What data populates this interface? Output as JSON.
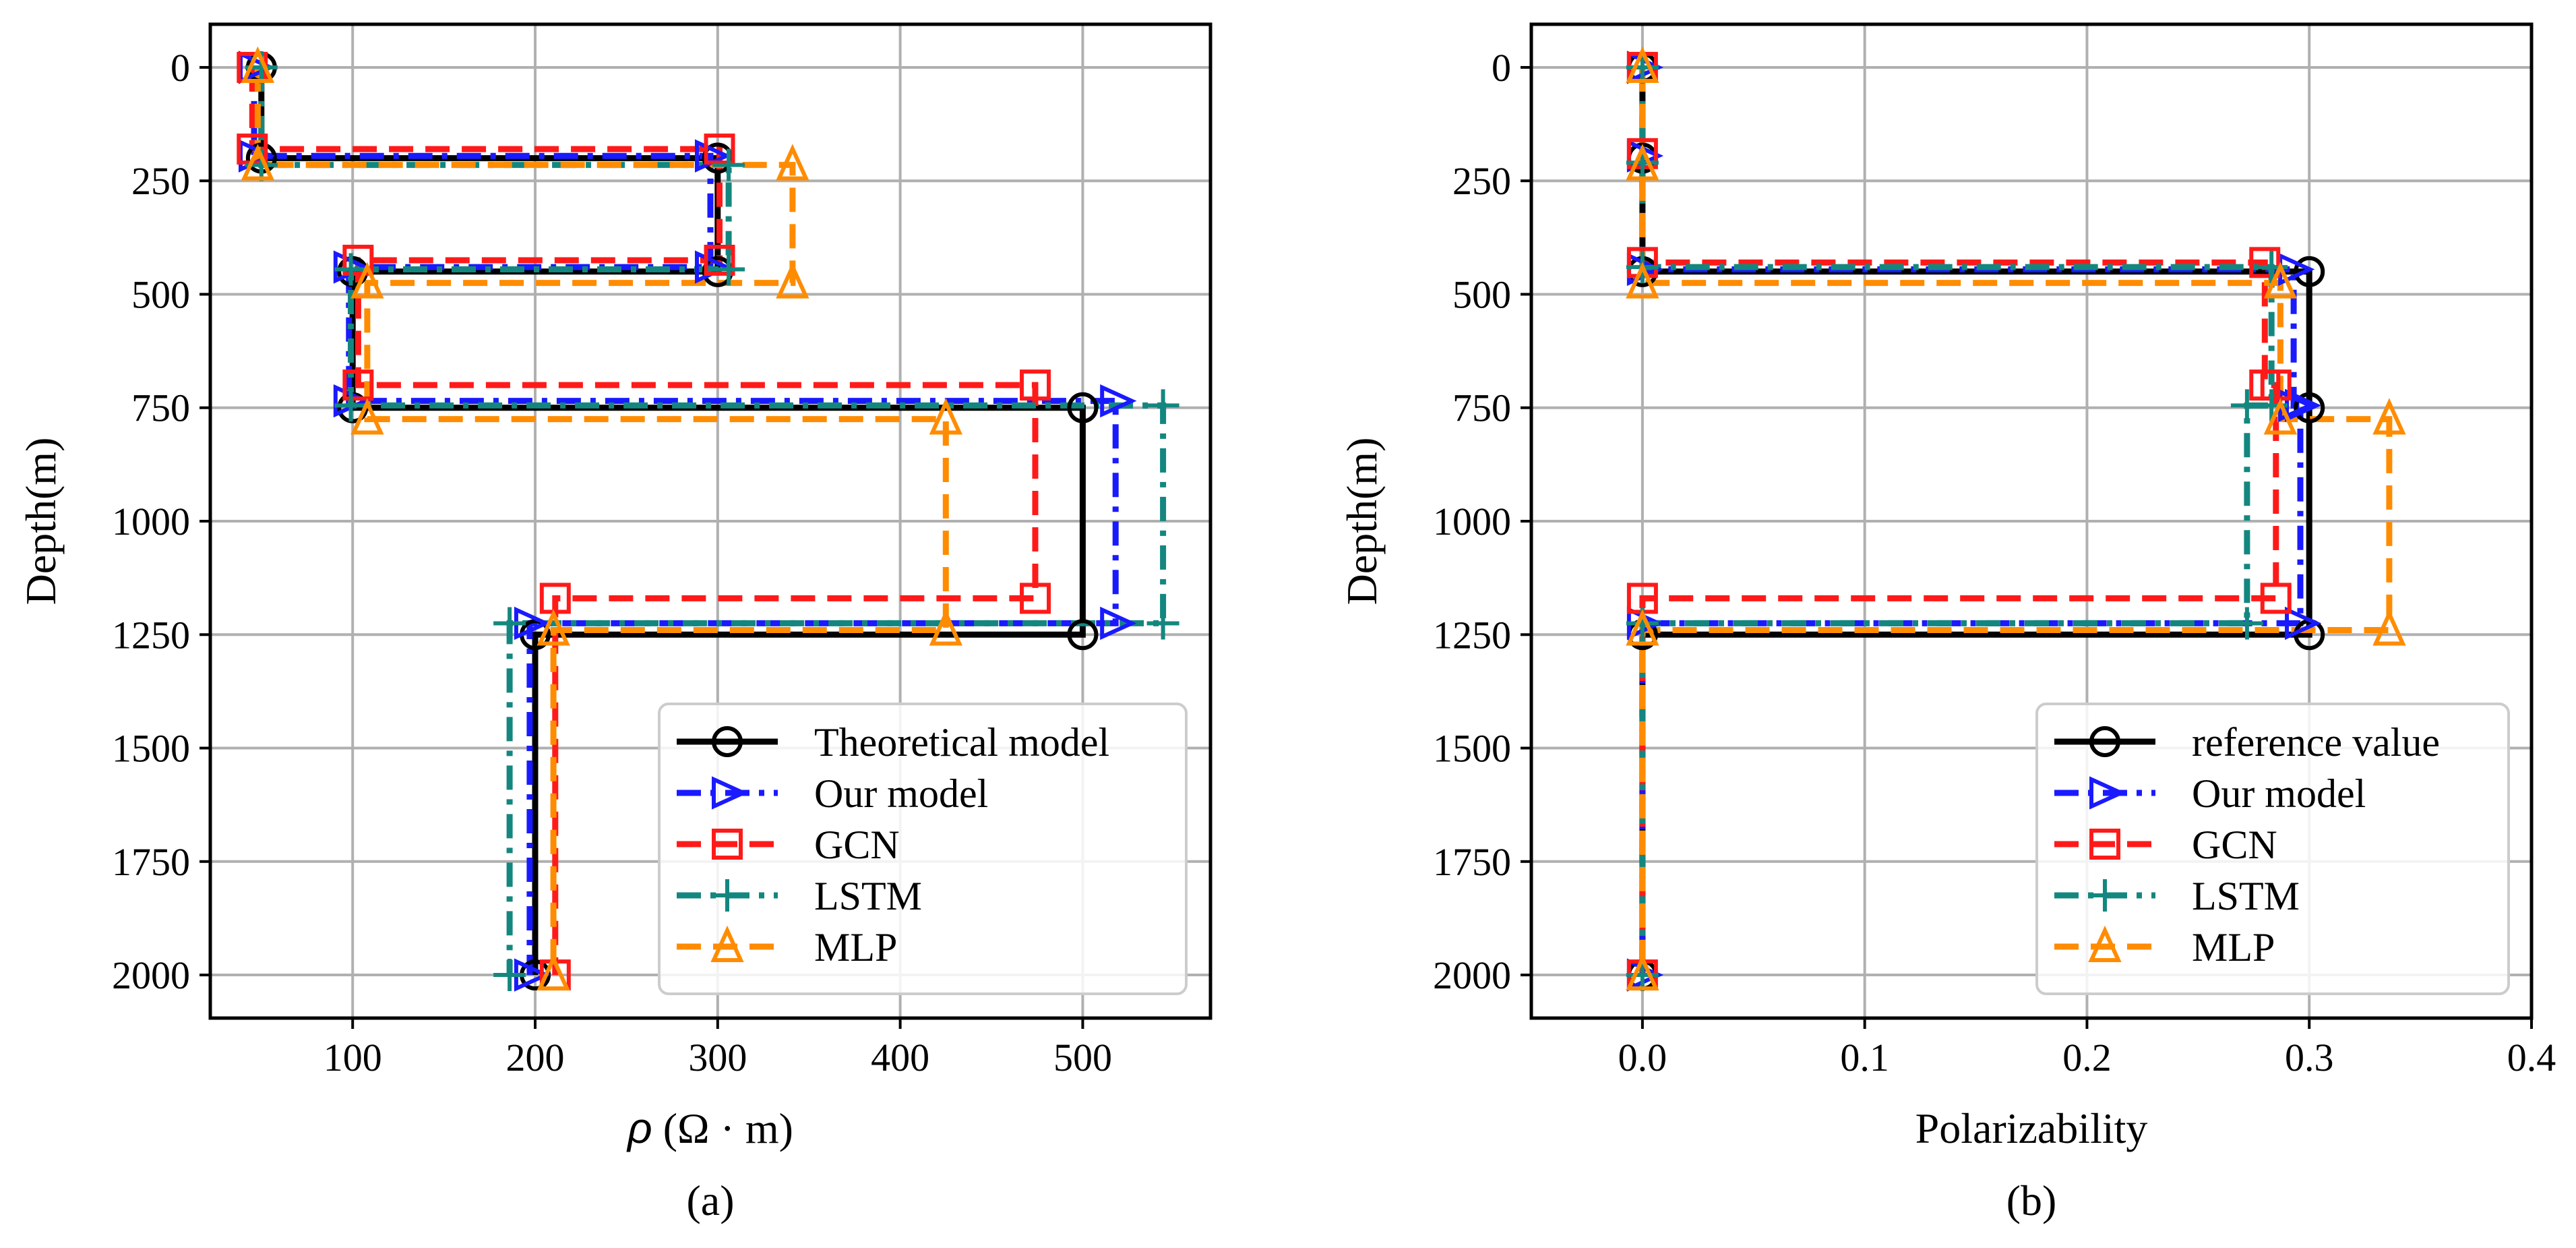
{
  "chart_data": [
    {
      "type": "line",
      "panel": "a",
      "caption": "(a)",
      "xlabel_symbol": "ρ",
      "xlabel_rest": " (Ω · m)",
      "ylabel": "Depth(m)",
      "xlim": [
        22,
        570
      ],
      "ylim": [
        2095,
        -95
      ],
      "y_inverted": true,
      "grid": true,
      "xticks": [
        100,
        200,
        300,
        400,
        500
      ],
      "xtick_labels": [
        "100",
        "200",
        "300",
        "400",
        "500"
      ],
      "yticks": [
        0,
        250,
        500,
        750,
        1000,
        1250,
        1500,
        1750,
        2000
      ],
      "ytick_labels": [
        "0",
        "250",
        "500",
        "750",
        "1000",
        "1250",
        "1500",
        "1750",
        "2000"
      ],
      "legend_position": "lower-right",
      "series": [
        {
          "name": "Theoretical model",
          "color": "#000000",
          "style": "solid",
          "marker": "circle",
          "points": [
            [
              50,
              0
            ],
            [
              50,
              200
            ],
            [
              300,
              200
            ],
            [
              300,
              450
            ],
            [
              100,
              450
            ],
            [
              100,
              750
            ],
            [
              500,
              750
            ],
            [
              500,
              1250
            ],
            [
              200,
              1250
            ],
            [
              200,
              2000
            ]
          ]
        },
        {
          "name": "Our model",
          "color": "#1a1aff",
          "style": "dashdot",
          "marker": "triangle-right",
          "points": [
            [
              46,
              0
            ],
            [
              46,
              195
            ],
            [
              296,
              195
            ],
            [
              296,
              440
            ],
            [
              98,
              440
            ],
            [
              98,
              735
            ],
            [
              518,
              735
            ],
            [
              518,
              1225
            ],
            [
              197,
              1225
            ],
            [
              197,
              2000
            ]
          ]
        },
        {
          "name": "GCN",
          "color": "#ff1a1a",
          "style": "dashed",
          "marker": "square",
          "points": [
            [
              45,
              0
            ],
            [
              45,
              180
            ],
            [
              301,
              180
            ],
            [
              301,
              425
            ],
            [
              103,
              425
            ],
            [
              103,
              700
            ],
            [
              474,
              700
            ],
            [
              474,
              1170
            ],
            [
              211,
              1170
            ],
            [
              211,
              2000
            ]
          ]
        },
        {
          "name": "LSTM",
          "color": "#13877f",
          "style": "dashdot",
          "marker": "plus",
          "points": [
            [
              50,
              0
            ],
            [
              50,
              215
            ],
            [
              306,
              215
            ],
            [
              306,
              445
            ],
            [
              99,
              445
            ],
            [
              99,
              745
            ],
            [
              544,
              745
            ],
            [
              544,
              1225
            ],
            [
              186,
              1225
            ],
            [
              186,
              2000
            ]
          ]
        },
        {
          "name": "MLP",
          "color": "#ff8c00",
          "style": "dashed",
          "marker": "triangle-up",
          "points": [
            [
              48,
              0
            ],
            [
              48,
              215
            ],
            [
              341,
              215
            ],
            [
              341,
              475
            ],
            [
              108,
              475
            ],
            [
              108,
              775
            ],
            [
              425,
              775
            ],
            [
              425,
              1240
            ],
            [
              210,
              1240
            ],
            [
              210,
              2000
            ]
          ]
        }
      ]
    },
    {
      "type": "line",
      "panel": "b",
      "caption": "(b)",
      "xlabel": "Polarizability",
      "ylabel": "Depth(m)",
      "xlim": [
        -0.05,
        0.4
      ],
      "ylim": [
        2095,
        -95
      ],
      "y_inverted": true,
      "grid": true,
      "xticks": [
        0.0,
        0.1,
        0.2,
        0.3,
        0.4
      ],
      "xtick_labels": [
        "0.0",
        "0.1",
        "0.2",
        "0.3",
        "0.4"
      ],
      "yticks": [
        0,
        250,
        500,
        750,
        1000,
        1250,
        1500,
        1750,
        2000
      ],
      "ytick_labels": [
        "0",
        "250",
        "500",
        "750",
        "1000",
        "1250",
        "1500",
        "1750",
        "2000"
      ],
      "legend_position": "lower-right",
      "series": [
        {
          "name": "reference value",
          "color": "#000000",
          "style": "solid",
          "marker": "circle",
          "points": [
            [
              0,
              0
            ],
            [
              0,
              200
            ],
            [
              0,
              450
            ],
            [
              0.3,
              450
            ],
            [
              0.3,
              750
            ],
            [
              0.3,
              1250
            ],
            [
              0,
              1250
            ],
            [
              0,
              2000
            ]
          ]
        },
        {
          "name": "Our model",
          "color": "#1a1aff",
          "style": "dashdot",
          "marker": "triangle-right",
          "points": [
            [
              0,
              0
            ],
            [
              0,
              195
            ],
            [
              0,
              445
            ],
            [
              0.293,
              445
            ],
            [
              0.293,
              745
            ],
            [
              0.296,
              745
            ],
            [
              0.296,
              1225
            ],
            [
              0,
              1225
            ],
            [
              0,
              2000
            ]
          ]
        },
        {
          "name": "GCN",
          "color": "#ff1a1a",
          "style": "dashed",
          "marker": "square",
          "points": [
            [
              0,
              0
            ],
            [
              0,
              190
            ],
            [
              0,
              430
            ],
            [
              0.28,
              430
            ],
            [
              0.28,
              700
            ],
            [
              0.285,
              700
            ],
            [
              0.285,
              1170
            ],
            [
              0,
              1170
            ],
            [
              0,
              2000
            ]
          ]
        },
        {
          "name": "LSTM",
          "color": "#13877f",
          "style": "dashdot",
          "marker": "plus",
          "points": [
            [
              0,
              0
            ],
            [
              0,
              210
            ],
            [
              0,
              440
            ],
            [
              0.283,
              440
            ],
            [
              0.283,
              745
            ],
            [
              0.272,
              745
            ],
            [
              0.272,
              1225
            ],
            [
              0,
              1225
            ],
            [
              0,
              2000
            ]
          ]
        },
        {
          "name": "MLP",
          "color": "#ff8c00",
          "style": "dashed",
          "marker": "triangle-up",
          "points": [
            [
              0,
              0
            ],
            [
              0,
              215
            ],
            [
              0,
              475
            ],
            [
              0.287,
              475
            ],
            [
              0.287,
              775
            ],
            [
              0.336,
              775
            ],
            [
              0.336,
              1240
            ],
            [
              0,
              1240
            ],
            [
              0,
              2000
            ]
          ]
        }
      ]
    }
  ]
}
